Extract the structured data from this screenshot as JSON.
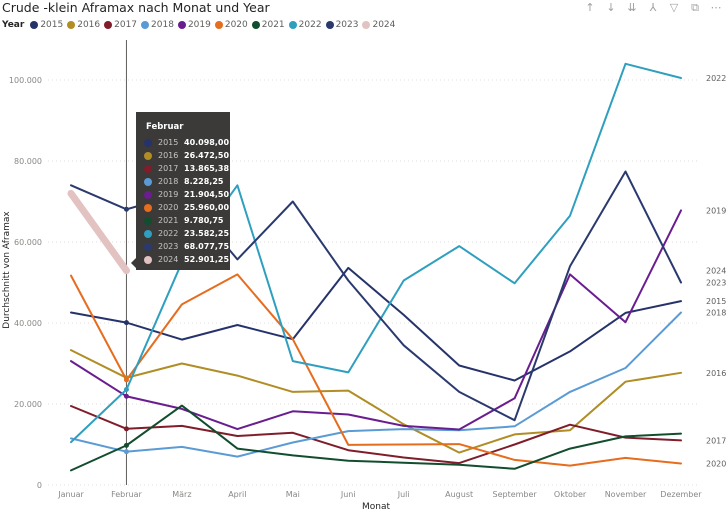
{
  "header": {
    "title": "Crude -klein Aframax nach Monat und Year",
    "toolbar": [
      {
        "name": "drill-up-icon",
        "glyph": "↑"
      },
      {
        "name": "drill-down-icon",
        "glyph": "↓"
      },
      {
        "name": "next-level-icon",
        "glyph": "⇊"
      },
      {
        "name": "expand-hierarchy-icon",
        "glyph": "⅄"
      },
      {
        "name": "filter-icon",
        "glyph": "▽"
      },
      {
        "name": "focus-mode-icon",
        "glyph": "⧉"
      },
      {
        "name": "more-options-icon",
        "glyph": "⋯"
      }
    ]
  },
  "chart_data": {
    "type": "line",
    "title": "Crude -klein Aframax nach Monat und Year",
    "xlabel": "Monat",
    "ylabel": "Durchschnitt von Aframax",
    "legend_title": "Year",
    "legend_position": "top-left",
    "grid": true,
    "ylim": [
      0,
      105000
    ],
    "yticks": [
      0,
      20000,
      40000,
      60000,
      80000,
      100000
    ],
    "ytick_labels": [
      "0",
      "20.000",
      "40.000",
      "60.000",
      "80.000",
      "100.000"
    ],
    "categories": [
      "Januar",
      "Februar",
      "März",
      "April",
      "Mai",
      "Juni",
      "Juli",
      "August",
      "September",
      "Oktober",
      "November",
      "Dezember"
    ],
    "series": [
      {
        "name": "2015",
        "color": "#26336b",
        "values": [
          42600,
          40098,
          35900,
          39500,
          36000,
          53600,
          42000,
          29500,
          25800,
          33000,
          42500,
          45400
        ]
      },
      {
        "name": "2016",
        "color": "#b08d25",
        "values": [
          33300,
          26472.5,
          30000,
          27000,
          23000,
          23300,
          15000,
          8000,
          12500,
          13500,
          25500,
          27700
        ]
      },
      {
        "name": "2017",
        "color": "#7f1d2a",
        "values": [
          19500,
          13865.38,
          14600,
          12100,
          12900,
          8600,
          6800,
          5400,
          10000,
          14900,
          11700,
          11000
        ]
      },
      {
        "name": "2018",
        "color": "#5b9bd5",
        "values": [
          11500,
          8228.25,
          9400,
          7000,
          10500,
          13300,
          13800,
          13500,
          14500,
          23000,
          28900,
          42600
        ]
      },
      {
        "name": "2019",
        "color": "#6a1d8f",
        "values": [
          30600,
          21904.5,
          18800,
          13800,
          18200,
          17400,
          14600,
          13700,
          21400,
          52000,
          40200,
          67800
        ]
      },
      {
        "name": "2020",
        "color": "#e66c1e",
        "values": [
          51700,
          25960,
          44600,
          52000,
          36000,
          9900,
          10000,
          10100,
          6200,
          4800,
          6700,
          5300
        ]
      },
      {
        "name": "2021",
        "color": "#124d2e",
        "values": [
          3600,
          9780.75,
          19600,
          9000,
          7300,
          6000,
          5500,
          5000,
          4000,
          9000,
          12000,
          12700
        ]
      },
      {
        "name": "2022",
        "color": "#2f9fbf",
        "values": [
          10600,
          23582.25,
          55000,
          74000,
          30600,
          27800,
          50500,
          59000,
          49800,
          66500,
          104000,
          100500
        ]
      },
      {
        "name": "2023",
        "color": "#2b3a6e",
        "values": [
          74000,
          68077.75,
          72000,
          55700,
          70000,
          50500,
          34500,
          23000,
          16000,
          54000,
          77400,
          50000
        ]
      },
      {
        "name": "2024",
        "color": "#e3c2c2",
        "values": [
          72000,
          52901.25,
          null,
          null,
          null,
          null,
          null,
          null,
          null,
          null,
          null,
          null
        ]
      }
    ],
    "end_labels": [
      {
        "name": "2022",
        "value": 100500
      },
      {
        "name": "2019",
        "value": 67800
      },
      {
        "name": "2024",
        "value": 52901.25
      },
      {
        "name": "2023",
        "value": 50000
      },
      {
        "name": "2015",
        "value": 45400
      },
      {
        "name": "2018",
        "value": 42600
      },
      {
        "name": "2016",
        "value": 27700
      },
      {
        "name": "2017",
        "value": 11000
      },
      {
        "name": "2020",
        "value": 5300
      }
    ],
    "hover_category": "Februar",
    "tooltip": {
      "header": "Februar",
      "rows": [
        {
          "year": "2015",
          "value": "40.098,00",
          "color": "#26336b"
        },
        {
          "year": "2016",
          "value": "26.472,50",
          "color": "#b08d25"
        },
        {
          "year": "2017",
          "value": "13.865,38",
          "color": "#7f1d2a"
        },
        {
          "year": "2018",
          "value": "8.228,25",
          "color": "#5b9bd5"
        },
        {
          "year": "2019",
          "value": "21.904,50",
          "color": "#6a1d8f"
        },
        {
          "year": "2020",
          "value": "25.960,00",
          "color": "#e66c1e"
        },
        {
          "year": "2021",
          "value": "9.780,75",
          "color": "#124d2e"
        },
        {
          "year": "2022",
          "value": "23.582,25",
          "color": "#2f9fbf"
        },
        {
          "year": "2023",
          "value": "68.077,75",
          "color": "#2b3a6e"
        },
        {
          "year": "2024",
          "value": "52.901,25",
          "color": "#e3c2c2"
        }
      ]
    }
  }
}
